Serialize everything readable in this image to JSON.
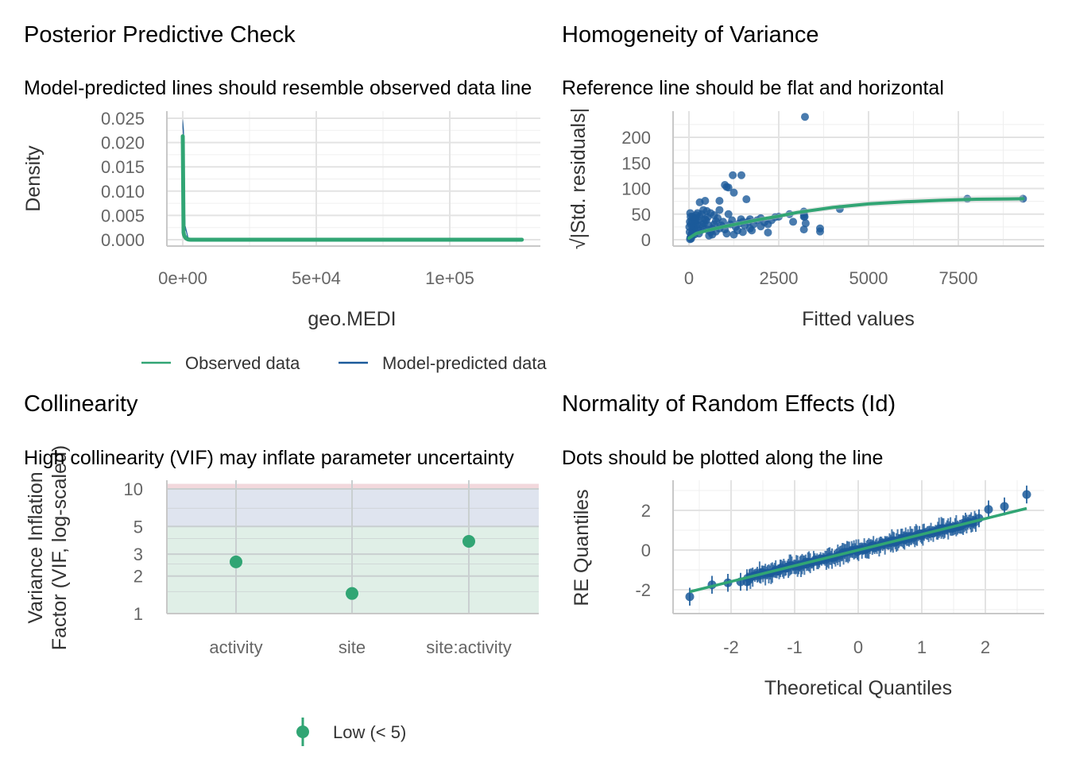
{
  "chart_data": [
    {
      "type": "line",
      "panel": "posterior-predictive-check",
      "title": "Posterior Predictive Check",
      "subtitle": "Model-predicted lines should resemble observed data line",
      "xlabel": "geo.MEDI",
      "ylabel": "Density",
      "xlim": [
        -6000,
        132000
      ],
      "ylim": [
        -0.001,
        0.026
      ],
      "x_ticks": [
        0,
        50000,
        100000
      ],
      "x_tick_labels": [
        "0e+00",
        "5e+04",
        "1e+05"
      ],
      "y_ticks": [
        0,
        0.005,
        0.01,
        0.015,
        0.02,
        0.025
      ],
      "y_tick_labels": [
        "0.000",
        "0.005",
        "0.010",
        "0.015",
        "0.020",
        "0.025"
      ],
      "grid": true,
      "legend": {
        "position": "bottom",
        "entries": [
          {
            "label": "Observed data",
            "color": "#31a574"
          },
          {
            "label": "Model-predicted data",
            "color": "#1b5a9a"
          }
        ]
      },
      "series": [
        {
          "name": "Model-predicted data",
          "color": "#1b5a9a",
          "x": [
            0,
            300,
            800,
            2000,
            127000
          ],
          "y": [
            0.024,
            0.022,
            0.003,
            0.0003,
            0.0
          ]
        },
        {
          "name": "Observed data",
          "color": "#31a574",
          "x": [
            0,
            400,
            900,
            1800,
            4000,
            127000
          ],
          "y": [
            0.0213,
            0.02,
            0.002,
            0.0004,
            0.0001,
            0.0
          ]
        }
      ]
    },
    {
      "type": "scatter",
      "panel": "homogeneity-of-variance",
      "title": "Homogeneity of Variance",
      "subtitle": "Reference line should be flat and horizontal",
      "xlabel": "Fitted values",
      "ylabel": "√|Std. residuals|",
      "xlim": [
        -450,
        9950
      ],
      "ylim": [
        -8,
        250
      ],
      "x_ticks": [
        0,
        2500,
        5000,
        7500
      ],
      "x_tick_labels": [
        "0",
        "2500",
        "5000",
        "7500"
      ],
      "y_ticks": [
        0,
        50,
        100,
        150,
        200
      ],
      "y_tick_labels": [
        "0",
        "50",
        "100",
        "150",
        "200"
      ],
      "grid": true,
      "points_color": "#1b5a9a",
      "smooth_color": "#31a574",
      "points": [
        [
          3230,
          240
        ],
        [
          1220,
          126
        ],
        [
          1460,
          126
        ],
        [
          1000,
          107
        ],
        [
          1050,
          103
        ],
        [
          1100,
          102
        ],
        [
          1250,
          92
        ],
        [
          1600,
          79
        ],
        [
          850,
          76
        ],
        [
          450,
          76
        ],
        [
          300,
          73
        ],
        [
          4200,
          60
        ],
        [
          400,
          58
        ],
        [
          850,
          58
        ],
        [
          500,
          56
        ],
        [
          1100,
          50
        ],
        [
          2800,
          50
        ],
        [
          3200,
          55
        ],
        [
          3200,
          50
        ],
        [
          3220,
          45
        ],
        [
          3250,
          32
        ],
        [
          3200,
          20
        ],
        [
          3650,
          22
        ],
        [
          3650,
          16
        ],
        [
          2200,
          30
        ],
        [
          2200,
          14
        ],
        [
          7750,
          80
        ],
        [
          9300,
          80
        ],
        [
          2500,
          45
        ],
        [
          2000,
          42
        ],
        [
          1700,
          40
        ],
        [
          1500,
          35
        ],
        [
          2900,
          35
        ],
        [
          3200,
          45
        ],
        [
          50,
          5
        ],
        [
          80,
          12
        ],
        [
          100,
          20
        ],
        [
          120,
          28
        ],
        [
          150,
          35
        ],
        [
          180,
          42
        ],
        [
          200,
          48
        ],
        [
          60,
          2
        ],
        [
          90,
          8
        ],
        [
          130,
          15
        ],
        [
          160,
          22
        ],
        [
          220,
          30
        ],
        [
          260,
          38
        ],
        [
          300,
          45
        ],
        [
          350,
          50
        ],
        [
          30,
          1
        ],
        [
          70,
          10
        ],
        [
          110,
          18
        ],
        [
          140,
          25
        ],
        [
          170,
          32
        ],
        [
          190,
          40
        ],
        [
          240,
          52
        ],
        [
          280,
          12
        ],
        [
          320,
          18
        ],
        [
          380,
          25
        ],
        [
          420,
          32
        ],
        [
          480,
          38
        ],
        [
          520,
          44
        ],
        [
          560,
          8
        ],
        [
          600,
          15
        ],
        [
          650,
          22
        ],
        [
          700,
          30
        ],
        [
          750,
          36
        ],
        [
          800,
          42
        ],
        [
          900,
          28
        ],
        [
          950,
          35
        ],
        [
          1000,
          20
        ],
        [
          1050,
          12
        ],
        [
          1150,
          30
        ],
        [
          1200,
          38
        ],
        [
          1300,
          25
        ],
        [
          1350,
          18
        ],
        [
          1400,
          32
        ],
        [
          1450,
          40
        ],
        [
          1550,
          28
        ],
        [
          1650,
          35
        ],
        [
          1700,
          22
        ],
        [
          1800,
          30
        ],
        [
          1900,
          38
        ],
        [
          2000,
          26
        ],
        [
          2100,
          34
        ],
        [
          2300,
          38
        ],
        [
          2400,
          44
        ],
        [
          700,
          48
        ],
        [
          600,
          52
        ],
        [
          450,
          40
        ],
        [
          350,
          30
        ],
        [
          250,
          20
        ],
        [
          150,
          10
        ],
        [
          40,
          4
        ],
        [
          20,
          15
        ],
        [
          10,
          25
        ],
        [
          25,
          35
        ],
        [
          45,
          45
        ],
        [
          35,
          52
        ],
        [
          55,
          30
        ],
        [
          75,
          38
        ],
        [
          95,
          45
        ],
        [
          500,
          20
        ],
        [
          550,
          28
        ],
        [
          650,
          10
        ],
        [
          750,
          16
        ],
        [
          850,
          22
        ],
        [
          1250,
          10
        ],
        [
          1500,
          15
        ],
        [
          1750,
          18
        ]
      ],
      "smooth": {
        "x": [
          0,
          200,
          500,
          1000,
          1500,
          2000,
          2500,
          3000,
          4000,
          5000,
          6000,
          7000,
          8000,
          9300
        ],
        "y": [
          3,
          12,
          18,
          26,
          33,
          40,
          46,
          53,
          63,
          70,
          74,
          77,
          79,
          80
        ]
      }
    },
    {
      "type": "scatter",
      "panel": "collinearity",
      "title": "Collinearity",
      "subtitle": "High collinearity (VIF) may inflate parameter uncertainty",
      "xlabel": "",
      "ylabel": "Variance Inflation\nFactor (VIF, log-scaled)",
      "y_scale": "log",
      "ylim": [
        1,
        11
      ],
      "categories": [
        "activity",
        "site",
        "site:activity"
      ],
      "values": [
        2.6,
        1.45,
        3.8
      ],
      "y_ticks": [
        1,
        2,
        3,
        5,
        10
      ],
      "y_tick_labels": [
        "1",
        "2",
        "3",
        "5",
        "10"
      ],
      "bands": [
        {
          "from": 1,
          "to": 5,
          "color": "#e0efe7"
        },
        {
          "from": 5,
          "to": 10,
          "color": "#dfe4ef"
        },
        {
          "from": 10,
          "to": 11,
          "color": "#f2d8dc"
        }
      ],
      "grid": true,
      "point_color": "#31a574",
      "legend": {
        "position": "bottom",
        "entries": [
          {
            "label": "Low (< 5)",
            "color": "#31a574"
          }
        ]
      }
    },
    {
      "type": "scatter",
      "panel": "normality-of-random-effects",
      "title": "Normality of Random Effects (Id)",
      "subtitle": "Dots should be plotted along the line",
      "xlabel": "Theoretical Quantiles",
      "ylabel": "RE Quantiles",
      "xlim": [
        -2.92,
        2.92
      ],
      "ylim": [
        -3.2,
        3.45
      ],
      "x_ticks": [
        -2,
        -1,
        0,
        1,
        2
      ],
      "x_tick_labels": [
        "-2",
        "-1",
        "0",
        "1",
        "2"
      ],
      "y_ticks": [
        -2,
        0,
        2
      ],
      "y_tick_labels": [
        "-2",
        "0",
        "2"
      ],
      "grid": true,
      "line": {
        "x": [
          -2.65,
          2.65
        ],
        "y": [
          -2.1,
          2.1
        ],
        "color": "#31a574"
      },
      "point_color": "#1b5a9a",
      "n_points": 200,
      "extreme_points": [
        [
          -2.65,
          -2.35
        ],
        [
          -2.3,
          -1.75
        ],
        [
          -2.05,
          -1.65
        ],
        [
          -1.85,
          -1.6
        ],
        [
          -1.75,
          -1.6
        ],
        [
          1.9,
          1.6
        ],
        [
          2.05,
          2.05
        ],
        [
          2.3,
          2.2
        ],
        [
          2.65,
          2.8
        ]
      ]
    }
  ]
}
